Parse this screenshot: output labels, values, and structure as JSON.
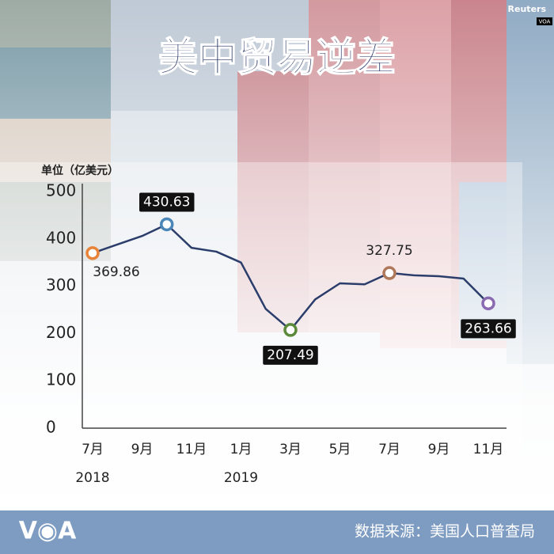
{
  "header": {
    "title": "美中贸易逆差",
    "credit": "Reuters",
    "credit_logo": "VOA"
  },
  "chart_data": {
    "type": "line",
    "y_axis_label": "单位（亿美元）",
    "categories": [
      "7月",
      null,
      "9月",
      null,
      "11月",
      null,
      "1月",
      null,
      "3月",
      null,
      "5月",
      null,
      "7月",
      null,
      "9月",
      null,
      "11月"
    ],
    "year_labels": [
      {
        "index": 0,
        "label": "2018"
      },
      {
        "index": 6,
        "label": "2019"
      }
    ],
    "series": [
      {
        "color": "#2b3d6b",
        "values": [
          369.86,
          388,
          406,
          430.63,
          381,
          373,
          350,
          252,
          207.49,
          272,
          306,
          304,
          327.75,
          323,
          321,
          316,
          263.66
        ]
      }
    ],
    "highlights": [
      {
        "index": 0,
        "color": "#e8833a",
        "boxed": false
      },
      {
        "index": 3,
        "color": "#4a86b8",
        "boxed": true
      },
      {
        "index": 8,
        "color": "#5a8a3a",
        "boxed": true
      },
      {
        "index": 12,
        "color": "#b0785a",
        "boxed": false
      },
      {
        "index": 16,
        "color": "#8a6ab0",
        "boxed": true
      }
    ],
    "ylim": [
      0,
      500
    ],
    "yticks": [
      0,
      100,
      200,
      300,
      400,
      500
    ]
  },
  "footer": {
    "logo": "V◉A",
    "source": "数据来源：美国人口普查局"
  }
}
